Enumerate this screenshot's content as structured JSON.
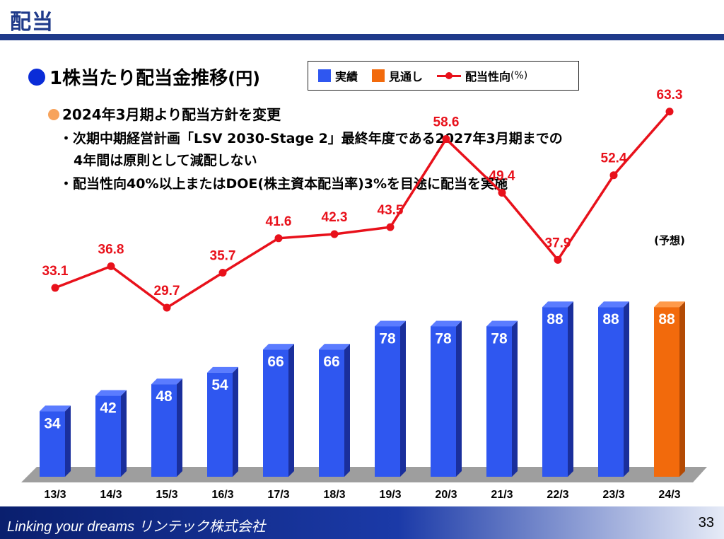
{
  "page": {
    "title": "配当",
    "page_number": "33"
  },
  "section": {
    "heading": "1株当たり配当金推移",
    "unit": "(円)"
  },
  "legend": {
    "actual": "実績",
    "forecast": "見通し",
    "payout": "配当性向",
    "payout_unit": "(%)"
  },
  "policy": {
    "heading": "2024年3月期より配当方針を変更",
    "line1": "・次期中期経営計画「LSV 2030-Stage 2」最終年度である2027年3月期までの",
    "line2": "4年間は原則として減配しない",
    "line3": "・配当性向40%以上またはDOE(株主資本配当率)3%を目途に配当を実施"
  },
  "footer": {
    "slogan": "Linking your dreams リンテック株式会社"
  },
  "colors": {
    "actual": "#2f57f0",
    "forecast": "#f26a0c",
    "payout": "#e8111b",
    "title": "#1f3a8a"
  },
  "chart_data": {
    "type": "bar",
    "categories": [
      "13/3",
      "14/3",
      "15/3",
      "16/3",
      "17/3",
      "18/3",
      "19/3",
      "20/3",
      "21/3",
      "22/3",
      "23/3",
      "24/3"
    ],
    "series": [
      {
        "name": "実績",
        "values": [
          34,
          42,
          48,
          54,
          66,
          66,
          78,
          78,
          78,
          88,
          88,
          null
        ]
      },
      {
        "name": "見通し",
        "values": [
          null,
          null,
          null,
          null,
          null,
          null,
          null,
          null,
          null,
          null,
          null,
          88
        ]
      },
      {
        "name": "配当性向",
        "type": "line",
        "values": [
          33.1,
          36.8,
          29.7,
          35.7,
          41.6,
          42.3,
          43.5,
          58.6,
          49.4,
          37.9,
          52.4,
          63.3
        ]
      }
    ],
    "forecast_annotation": "(予想)",
    "units": {
      "bars": "円",
      "line": "%"
    }
  }
}
